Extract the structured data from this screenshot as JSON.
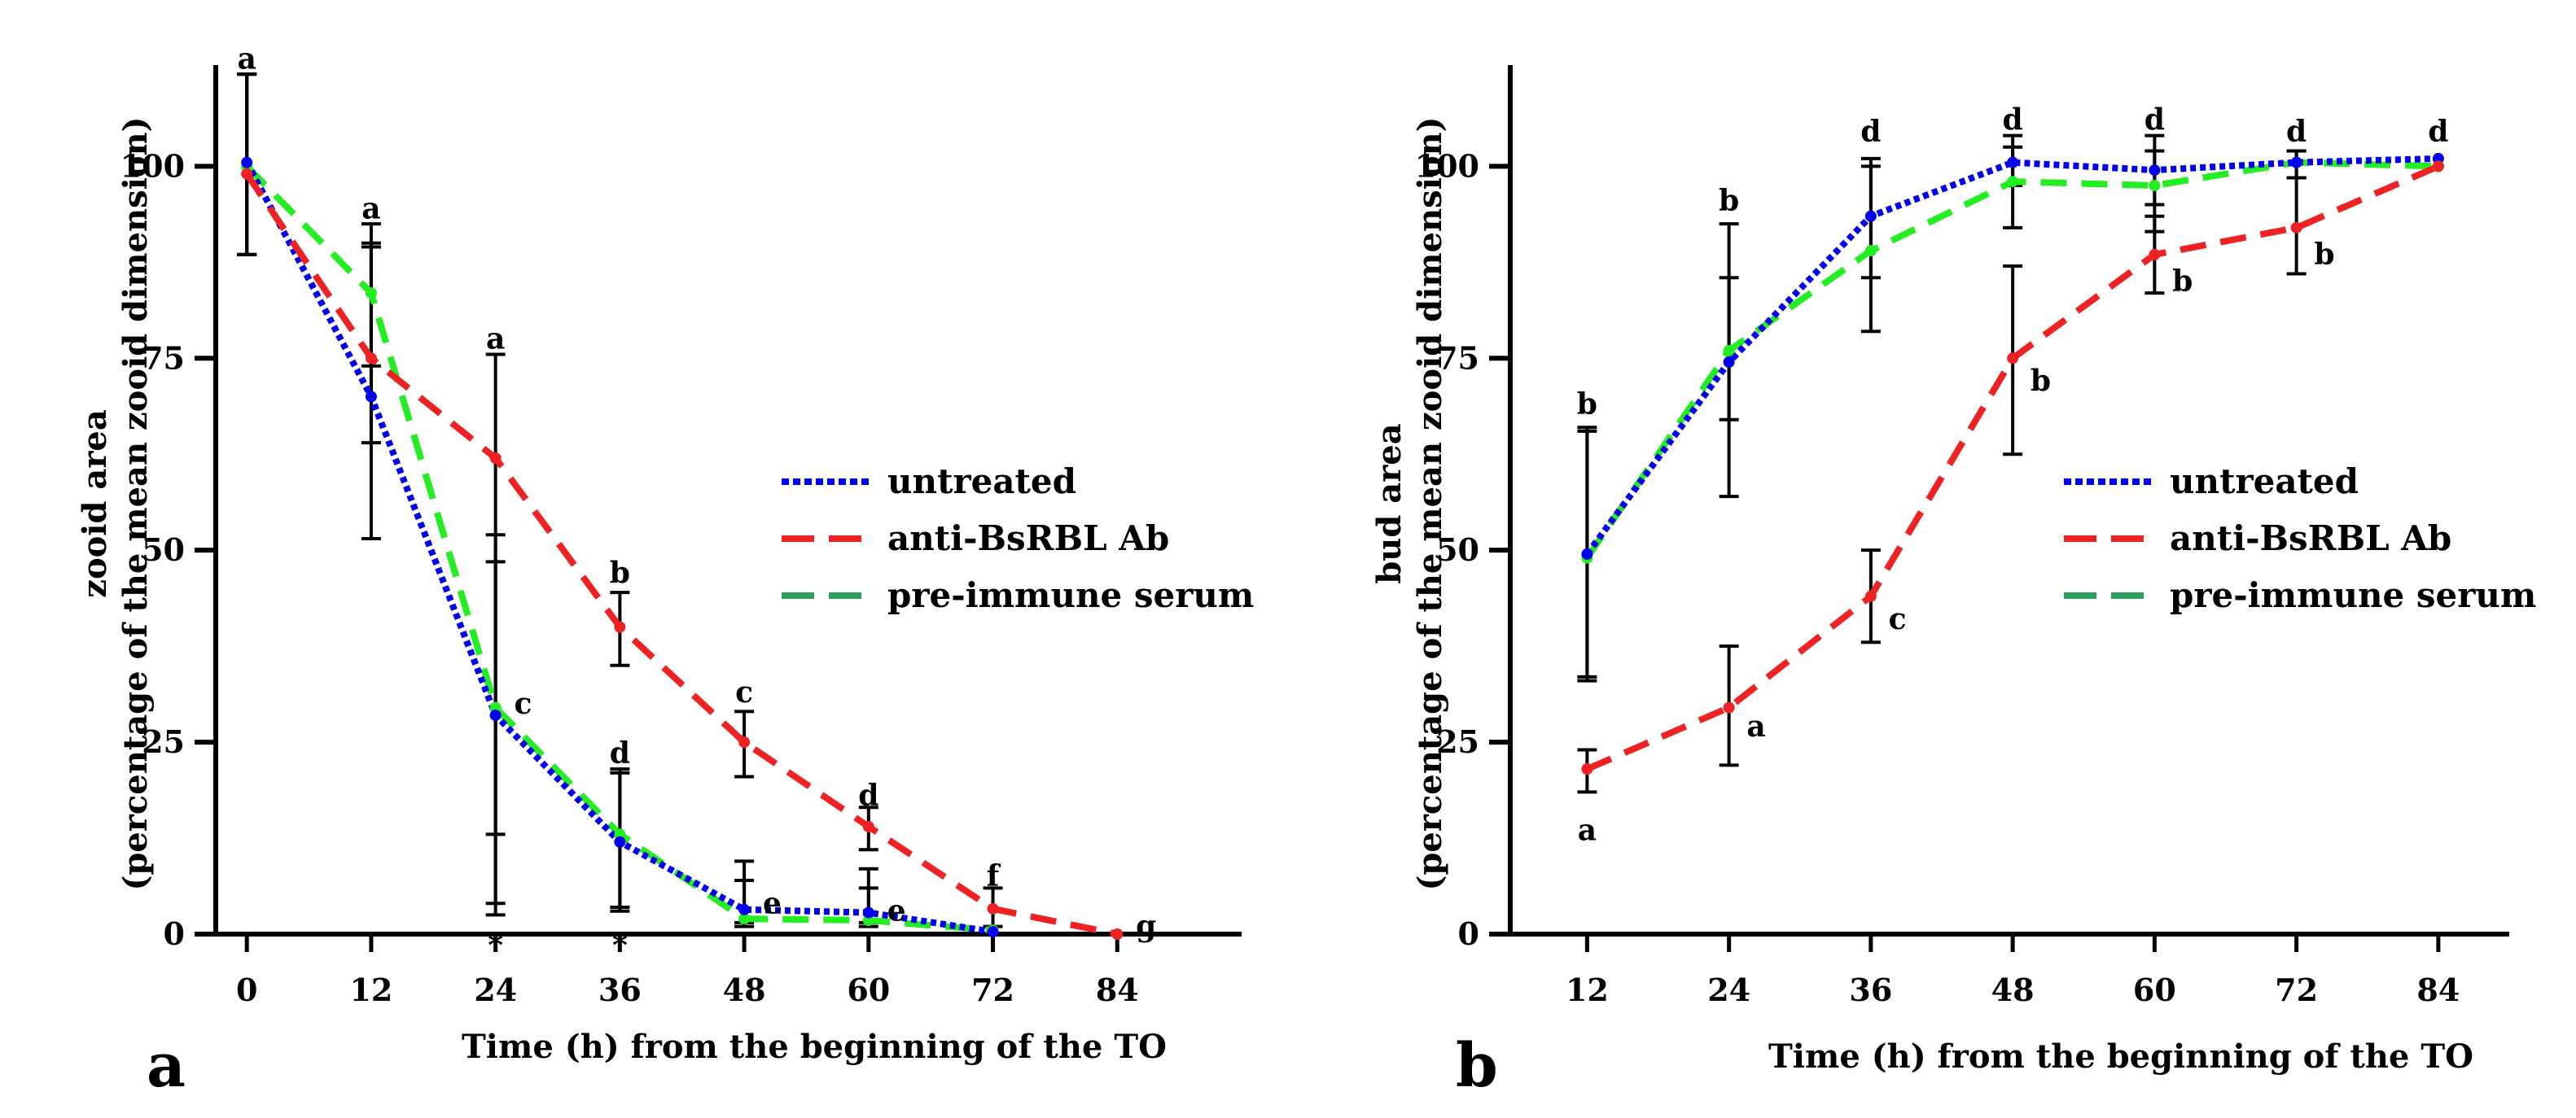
{
  "chart_data": [
    {
      "type": "line",
      "panel_label": "a",
      "xlabel": "Time (h) from the beginning of the TO",
      "ylabel": "zooid area",
      "ylabel_sub": "(percentage of the mean zooid dimension)",
      "xlim": [
        -3,
        96
      ],
      "ylim": [
        0,
        110
      ],
      "x_ticks": [
        0,
        12,
        24,
        36,
        48,
        60,
        72,
        84
      ],
      "y_ticks": [
        0,
        25,
        50,
        75,
        100
      ],
      "legend_position": "center-right",
      "series": [
        {
          "name": "untreated",
          "color": "#0000ee",
          "dash": "dotted",
          "x": [
            0,
            12,
            24,
            36,
            48,
            60,
            72
          ],
          "y": [
            100.5,
            70,
            28.5,
            12,
            3.2,
            2.8,
            0.3
          ],
          "err_low": [
            88.5,
            51.5,
            13,
            3.5,
            1.5,
            1.5
          ],
          "err_high": [
            112,
            89.5,
            48.5,
            21,
            9.5,
            8.5
          ]
        },
        {
          "name": "anti-BsRBL Ab",
          "color": "#ee2222",
          "dash": "dashed",
          "x": [
            0,
            12,
            24,
            36,
            48,
            60,
            72,
            84
          ],
          "y": [
            99,
            75,
            62,
            40,
            25,
            14,
            3.3,
            0
          ],
          "err_low": [
            88.5,
            64,
            2.5,
            35,
            20.5,
            11,
            1
          ],
          "err_high": [
            112,
            90,
            75.5,
            44.5,
            29,
            16.5,
            6
          ]
        },
        {
          "name": "pre-immune serum",
          "color": "#22ee22",
          "legend_color": "#2e9e5e",
          "dash": "dashed",
          "x": [
            0,
            12,
            24,
            36,
            48,
            60,
            72
          ],
          "y": [
            100,
            83.5,
            29.5,
            13,
            2,
            1.8,
            0.5
          ],
          "err_low": [
            88.5,
            74,
            4,
            3,
            1,
            1
          ],
          "err_high": [
            112,
            92.5,
            52,
            21.5,
            7,
            6
          ]
        }
      ],
      "annotations": [
        {
          "text": "a",
          "x": 0,
          "y": 114,
          "anchor": "middle"
        },
        {
          "text": "a",
          "x": 12,
          "y": 94.5,
          "anchor": "middle"
        },
        {
          "text": "a",
          "x": 24,
          "y": 77.5,
          "anchor": "middle"
        },
        {
          "text": "c",
          "x": 25.8,
          "y": 30,
          "anchor": "start"
        },
        {
          "text": "b",
          "x": 36,
          "y": 47,
          "anchor": "middle"
        },
        {
          "text": "d",
          "x": 36,
          "y": 23.5,
          "anchor": "middle"
        },
        {
          "text": "c",
          "x": 48,
          "y": 31.5,
          "anchor": "middle"
        },
        {
          "text": "e",
          "x": 49.8,
          "y": 4,
          "anchor": "start"
        },
        {
          "text": "d",
          "x": 60,
          "y": 18,
          "anchor": "middle"
        },
        {
          "text": "e",
          "x": 61.8,
          "y": 3,
          "anchor": "start"
        },
        {
          "text": "f",
          "x": 72,
          "y": 7.5,
          "anchor": "middle"
        },
        {
          "text": "g",
          "x": 85.8,
          "y": 1,
          "anchor": "start"
        },
        {
          "text": "*",
          "x": 24,
          "y": -1.5,
          "anchor": "middle"
        },
        {
          "text": "*",
          "x": 36,
          "y": -1.5,
          "anchor": "middle"
        }
      ]
    },
    {
      "type": "line",
      "panel_label": "b",
      "xlabel": "Time (h) from the beginning of the TO",
      "ylabel": "bud area",
      "ylabel_sub": "(percentage of the mean zooid dimension)",
      "xlim": [
        5.5,
        90
      ],
      "ylim": [
        0,
        110
      ],
      "x_ticks": [
        12,
        24,
        36,
        48,
        60,
        72,
        84
      ],
      "y_ticks": [
        0,
        25,
        50,
        75,
        100
      ],
      "legend_position": "center-right",
      "series": [
        {
          "name": "untreated",
          "color": "#0000ee",
          "dash": "dotted",
          "x": [
            12,
            24,
            36,
            48,
            60,
            72,
            84
          ],
          "y": [
            49.5,
            74.5,
            93.5,
            100.5,
            99.5,
            100.5,
            101
          ],
          "err_low": [
            33.5,
            57,
            85.5,
            97.5,
            95,
            98.5
          ],
          "err_high": [
            66,
            92.5,
            101,
            102.5,
            104,
            102
          ]
        },
        {
          "name": "anti-BsRBL Ab",
          "color": "#ee2222",
          "dash": "dashed",
          "x": [
            12,
            24,
            36,
            48,
            60,
            72,
            84
          ],
          "y": [
            21.5,
            29.5,
            44,
            75,
            88.5,
            92,
            100
          ],
          "err_low": [
            18.5,
            22,
            38,
            62.5,
            83.5,
            86
          ],
          "err_high": [
            24,
            37.5,
            50,
            87,
            93.5,
            98.5
          ]
        },
        {
          "name": "pre-immune serum",
          "color": "#22ee22",
          "legend_color": "#2e9e5e",
          "dash": "dashed",
          "x": [
            12,
            24,
            36,
            48,
            60,
            72,
            84
          ],
          "y": [
            49,
            76,
            89,
            98,
            97.5,
            100.5,
            100
          ],
          "err_low": [
            33,
            67,
            78.5,
            92,
            91.5,
            98.5
          ],
          "err_high": [
            65.5,
            85.5,
            100,
            104,
            102,
            102
          ]
        }
      ],
      "annotations": [
        {
          "text": "b",
          "x": 12,
          "y": 69,
          "anchor": "middle"
        },
        {
          "text": "b",
          "x": 24,
          "y": 95.5,
          "anchor": "middle"
        },
        {
          "text": "d",
          "x": 36,
          "y": 104.5,
          "anchor": "middle"
        },
        {
          "text": "d",
          "x": 48,
          "y": 106,
          "anchor": "middle"
        },
        {
          "text": "d",
          "x": 60,
          "y": 106,
          "anchor": "middle"
        },
        {
          "text": "d",
          "x": 72,
          "y": 104.5,
          "anchor": "middle"
        },
        {
          "text": "d",
          "x": 84,
          "y": 104.5,
          "anchor": "middle"
        },
        {
          "text": "a",
          "x": 12,
          "y": 13.5,
          "anchor": "middle"
        },
        {
          "text": "a",
          "x": 25.5,
          "y": 27,
          "anchor": "start"
        },
        {
          "text": "c",
          "x": 37.5,
          "y": 41,
          "anchor": "start"
        },
        {
          "text": "b",
          "x": 49.5,
          "y": 72,
          "anchor": "start"
        },
        {
          "text": "b",
          "x": 61.5,
          "y": 85,
          "anchor": "start"
        },
        {
          "text": "b",
          "x": 73.5,
          "y": 88.5,
          "anchor": "start"
        }
      ]
    }
  ]
}
